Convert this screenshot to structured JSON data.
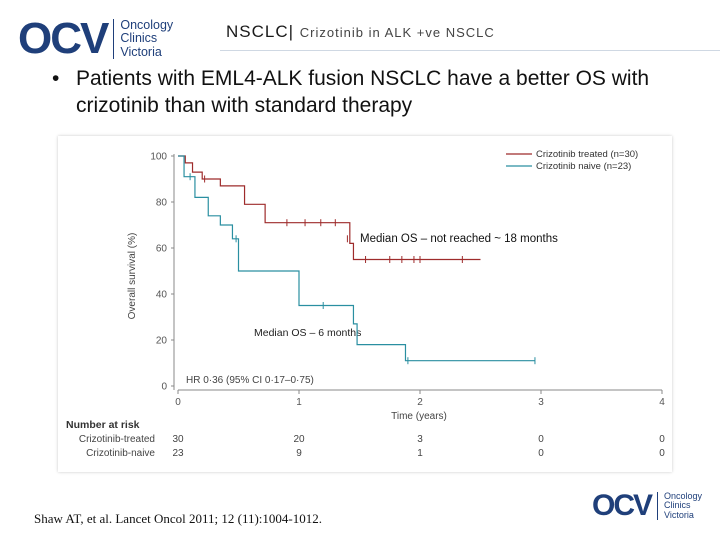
{
  "header": {
    "logo_mark": "OCV",
    "logo_lines": [
      "Oncology",
      "Clinics",
      "Victoria"
    ],
    "title": "NSCLC|",
    "subtitle": "Crizotinib in ALK +ve NSCLC"
  },
  "bullet": "Patients with EML4-ALK fusion NSCLC have a better OS with crizotinib than with standard therapy",
  "citation": "Shaw AT, et al.  Lancet Oncol 2011; 12 (11):1004-1012.",
  "footer_logo": {
    "mark": "OCV",
    "lines": [
      "Oncology",
      "Clinics",
      "Victoria"
    ]
  },
  "chart_data": {
    "type": "line",
    "step": true,
    "xlabel": "Time (years)",
    "ylabel": "Overall survival (%)",
    "xlim": [
      0,
      4
    ],
    "ylim": [
      0,
      100
    ],
    "xticks": [
      "0",
      "1",
      "2",
      "3",
      "4"
    ],
    "yticks": [
      "0",
      "20",
      "40",
      "60",
      "80",
      "100"
    ],
    "legend_position": "top-right",
    "series": [
      {
        "name": "Crizotinib treated (n=30)",
        "color": "#9e2b2b",
        "points": [
          [
            0,
            100
          ],
          [
            0.06,
            97
          ],
          [
            0.12,
            93
          ],
          [
            0.2,
            90
          ],
          [
            0.35,
            87
          ],
          [
            0.55,
            79
          ],
          [
            0.72,
            71
          ],
          [
            1.42,
            62
          ],
          [
            1.45,
            55
          ],
          [
            2.5,
            55
          ]
        ],
        "censors": [
          [
            0.22,
            90
          ],
          [
            0.9,
            71
          ],
          [
            1.05,
            71
          ],
          [
            1.18,
            71
          ],
          [
            1.3,
            71
          ],
          [
            1.4,
            64
          ],
          [
            1.55,
            55
          ],
          [
            1.75,
            55
          ],
          [
            1.85,
            55
          ],
          [
            1.95,
            55
          ],
          [
            2.0,
            55
          ],
          [
            2.35,
            55
          ]
        ]
      },
      {
        "name": "Crizotinib naive (n=23)",
        "color": "#2a8fa1",
        "points": [
          [
            0,
            100
          ],
          [
            0.05,
            91
          ],
          [
            0.14,
            82
          ],
          [
            0.25,
            74
          ],
          [
            0.35,
            70
          ],
          [
            0.45,
            64
          ],
          [
            0.5,
            50
          ],
          [
            1.0,
            48
          ],
          [
            1.0,
            35
          ],
          [
            1.45,
            27
          ],
          [
            1.48,
            18
          ],
          [
            1.85,
            18
          ],
          [
            1.88,
            11
          ],
          [
            2.95,
            11
          ]
        ],
        "censors": [
          [
            0.1,
            91
          ],
          [
            0.48,
            64
          ],
          [
            1.2,
            35
          ],
          [
            1.9,
            11
          ],
          [
            2.95,
            11
          ]
        ]
      }
    ],
    "annotations": [
      "Median OS – not reached ~ 18 months",
      "Median OS – 6 months",
      "HR 0·36 (95% CI 0·17–0·75)"
    ],
    "risk_table": {
      "title": "Number at risk",
      "rows": [
        {
          "label": "Crizotinib-treated",
          "values": [
            "30",
            "20",
            "3",
            "0",
            "0"
          ]
        },
        {
          "label": "Crizotinib-naive",
          "values": [
            "23",
            "9",
            "1",
            "0",
            "0"
          ]
        }
      ]
    }
  }
}
